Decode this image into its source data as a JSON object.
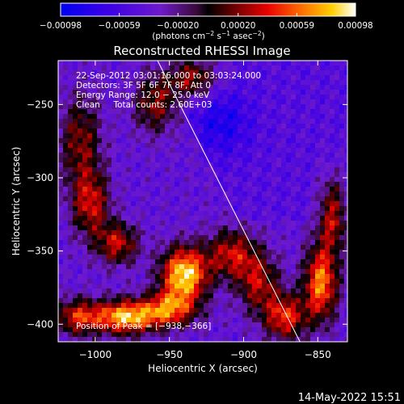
{
  "chart_data": {
    "type": "heatmap",
    "title": "Reconstructed RHESSI Image",
    "xlabel": "Heliocentric X (arcsec)",
    "ylabel": "Heliocentric Y (arcsec)",
    "xlim": [
      -1025,
      -830
    ],
    "ylim": [
      -412,
      -220
    ],
    "xticks": [
      -1000,
      -950,
      -900,
      -850
    ],
    "xtick_labels": [
      "−1000",
      "−950",
      "−900",
      "−850"
    ],
    "yticks": [
      -250,
      -300,
      -350,
      -400
    ],
    "ytick_labels": [
      "−250",
      "−300",
      "−350",
      "−400"
    ],
    "colorbar": {
      "min": -0.00098,
      "max": 0.00098,
      "ticks": [
        -0.00098,
        -0.00059,
        -0.0002,
        0.0002,
        0.00059,
        0.00098
      ],
      "tick_labels": [
        "−0.00098",
        "−0.00059",
        "−0.00020",
        "0.00020",
        "0.00059",
        "0.00098"
      ],
      "unit_prefix": "(photons cm",
      "unit_exp1": "−2",
      "unit_mid": " s",
      "unit_exp2": "−1",
      "unit_mid2": " asec",
      "unit_exp3": "−2",
      "unit_suffix": ")"
    },
    "annotations": {
      "line1": "22-Sep-2012 03:01:16.000 to 03:03:24.000",
      "line2": "Detectors: 3F 5F 6F 7F 8F, Att 0",
      "line3": "Energy Range: 12.0 − 25.0 keV",
      "line4": "Clean     Total counts: 2.60E+03",
      "peak": "Position of Peak = [−938,−366]"
    },
    "limb_line": [
      [
        -958,
        -220
      ],
      [
        -862,
        -412
      ]
    ],
    "sources": [
      {
        "x": -940,
        "y": -366,
        "amp": 1.0,
        "sx": 11,
        "sy": 13
      },
      {
        "x": -950,
        "y": -388,
        "amp": 0.55,
        "sx": 12,
        "sy": 8
      },
      {
        "x": -1003,
        "y": -318,
        "amp": 0.55,
        "sx": 9,
        "sy": 16
      },
      {
        "x": -1010,
        "y": -275,
        "amp": 0.45,
        "sx": 10,
        "sy": 22
      },
      {
        "x": -985,
        "y": -345,
        "amp": 0.55,
        "sx": 10,
        "sy": 10
      },
      {
        "x": -980,
        "y": -395,
        "amp": 0.55,
        "sx": 14,
        "sy": 9
      },
      {
        "x": -1012,
        "y": -395,
        "amp": 0.5,
        "sx": 10,
        "sy": 9
      },
      {
        "x": -908,
        "y": -352,
        "amp": 0.55,
        "sx": 12,
        "sy": 12
      },
      {
        "x": -890,
        "y": -372,
        "amp": 0.5,
        "sx": 10,
        "sy": 14
      },
      {
        "x": -872,
        "y": -395,
        "amp": 0.65,
        "sx": 10,
        "sy": 11
      },
      {
        "x": -848,
        "y": -372,
        "amp": 0.8,
        "sx": 8,
        "sy": 18
      },
      {
        "x": -840,
        "y": -325,
        "amp": 0.55,
        "sx": 7,
        "sy": 18
      },
      {
        "x": -935,
        "y": -232,
        "amp": 0.55,
        "sx": 12,
        "sy": 10
      },
      {
        "x": -960,
        "y": -250,
        "amp": 0.45,
        "sx": 10,
        "sy": 14
      },
      {
        "x": -975,
        "y": -395,
        "amp": 0.4,
        "sx": 25,
        "sy": 7
      }
    ],
    "timestamp": "14-May-2022 15:51"
  }
}
